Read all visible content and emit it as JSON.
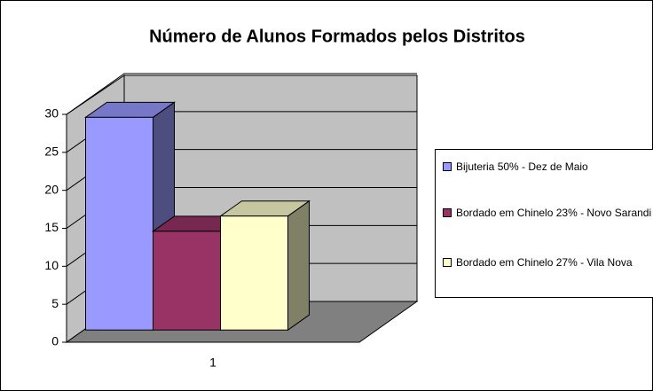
{
  "chart_data": {
    "type": "bar3d",
    "title": "Número de Alunos Formados pelos Distritos",
    "categories": [
      "1"
    ],
    "series": [
      {
        "name": "Bijuteria 50% - Dez de Maio",
        "color": "#9999ff",
        "values": [
          28
        ]
      },
      {
        "name": "Bordado em Chinelo 23% - Novo Sarandi",
        "color": "#993366",
        "values": [
          13
        ]
      },
      {
        "name": "Bordado em Chinelo 27% - Vila Nova",
        "color": "#ffffcc",
        "values": [
          15
        ]
      }
    ],
    "ylim": [
      0,
      30
    ],
    "yticks": [
      0,
      5,
      10,
      15,
      20,
      25,
      30
    ],
    "grid": true,
    "legend": "right"
  }
}
